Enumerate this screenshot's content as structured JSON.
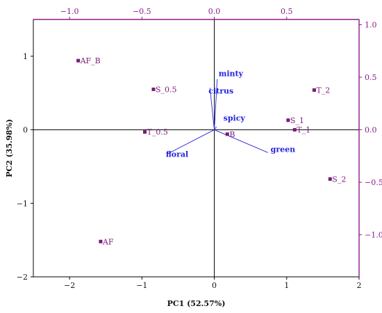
{
  "chart_data": {
    "type": "scatter",
    "subtype": "pca-biplot",
    "title": "",
    "xlabel": "PC1 (52.57%)",
    "ylabel": "PC2 (35.98%)",
    "xlim": [
      -2.5,
      2
    ],
    "ylim": [
      -2,
      1.5
    ],
    "x_ticks": [
      -2,
      -1,
      0,
      1,
      2
    ],
    "y_ticks": [
      -2,
      -1,
      0,
      1
    ],
    "top_axis": {
      "lim": [
        -1.25,
        1.0
      ],
      "ticks": [
        -1.0,
        -0.5,
        0.0,
        0.5
      ]
    },
    "right_axis": {
      "lim": [
        -1.4,
        1.05
      ],
      "ticks": [
        -1.0,
        -0.5,
        0.0,
        0.5,
        1.0
      ]
    },
    "grid": false,
    "zero_lines": true,
    "colors": {
      "scores": "#7b1a78",
      "loadings": "#2222dd",
      "secondary_axes": "#8b1a8b",
      "primary_axes": "#000000"
    },
    "scores": [
      {
        "label": "AF_B",
        "x": -1.88,
        "y": 0.94
      },
      {
        "label": "S_0.5",
        "x": -0.84,
        "y": 0.55
      },
      {
        "label": "T_2",
        "x": 1.38,
        "y": 0.54
      },
      {
        "label": "S_1",
        "x": 1.02,
        "y": 0.13
      },
      {
        "label": "T_1",
        "x": 1.11,
        "y": 0.0
      },
      {
        "label": "T_0.5",
        "x": -0.96,
        "y": -0.03
      },
      {
        "label": "B",
        "x": 0.18,
        "y": -0.06
      },
      {
        "label": "S_2",
        "x": 1.6,
        "y": -0.67
      },
      {
        "label": "AF",
        "x": -1.57,
        "y": -1.52
      }
    ],
    "loadings": [
      {
        "label": "minty",
        "x": 0.04,
        "y": 0.69
      },
      {
        "label": "citrus",
        "x": -0.06,
        "y": 0.57
      },
      {
        "label": "spicy",
        "x": 0.03,
        "y": 0.04
      },
      {
        "label": "floral",
        "x": -0.65,
        "y": -0.33
      },
      {
        "label": "green",
        "x": 0.74,
        "y": -0.31
      }
    ]
  }
}
